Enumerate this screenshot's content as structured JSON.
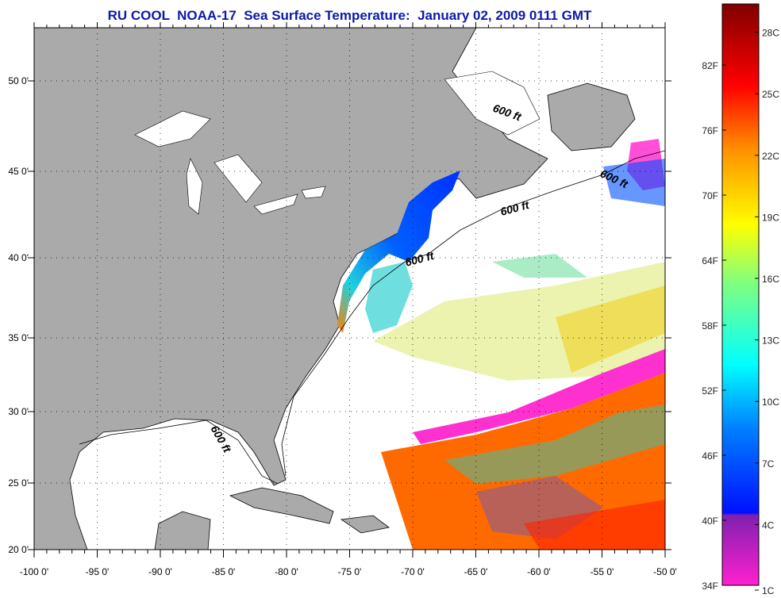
{
  "title": "RU COOL  NOAA-17  Sea Surface Temperature:  January 02, 2009 0111 GMT",
  "map": {
    "lon_ticks": [
      "-100 0'",
      "-95 0'",
      "-90 0'",
      "-85 0'",
      "-80 0'",
      "-75 0'",
      "-70 0'",
      "-65 0'",
      "-60 0'",
      "-55 0'",
      "-50 0'"
    ],
    "lat_ticks": [
      "20 0'",
      "25 0'",
      "30 0'",
      "35 0'",
      "40 0'",
      "45 0'",
      "50 0'"
    ],
    "contour_labels": [
      "600 ft",
      "600 ft",
      "600 ft",
      "600 ft",
      "600 ft"
    ],
    "land_color": "#aaaaaa",
    "ocean_color": "#ffffff"
  },
  "colorbar": {
    "fahrenheit_labels": [
      "34F",
      "40F",
      "46F",
      "52F",
      "58F",
      "64F",
      "70F",
      "76F",
      "82F"
    ],
    "celsius_labels": [
      "1C",
      "4C",
      "7C",
      "10C",
      "13C",
      "16C",
      "19C",
      "22C",
      "25C",
      "28C"
    ],
    "colors": [
      "#ff20d0",
      "#8020b0",
      "#0010ff",
      "#0080ff",
      "#00ffff",
      "#80ff80",
      "#ffff00",
      "#ff9000",
      "#ff0000",
      "#800000"
    ]
  }
}
